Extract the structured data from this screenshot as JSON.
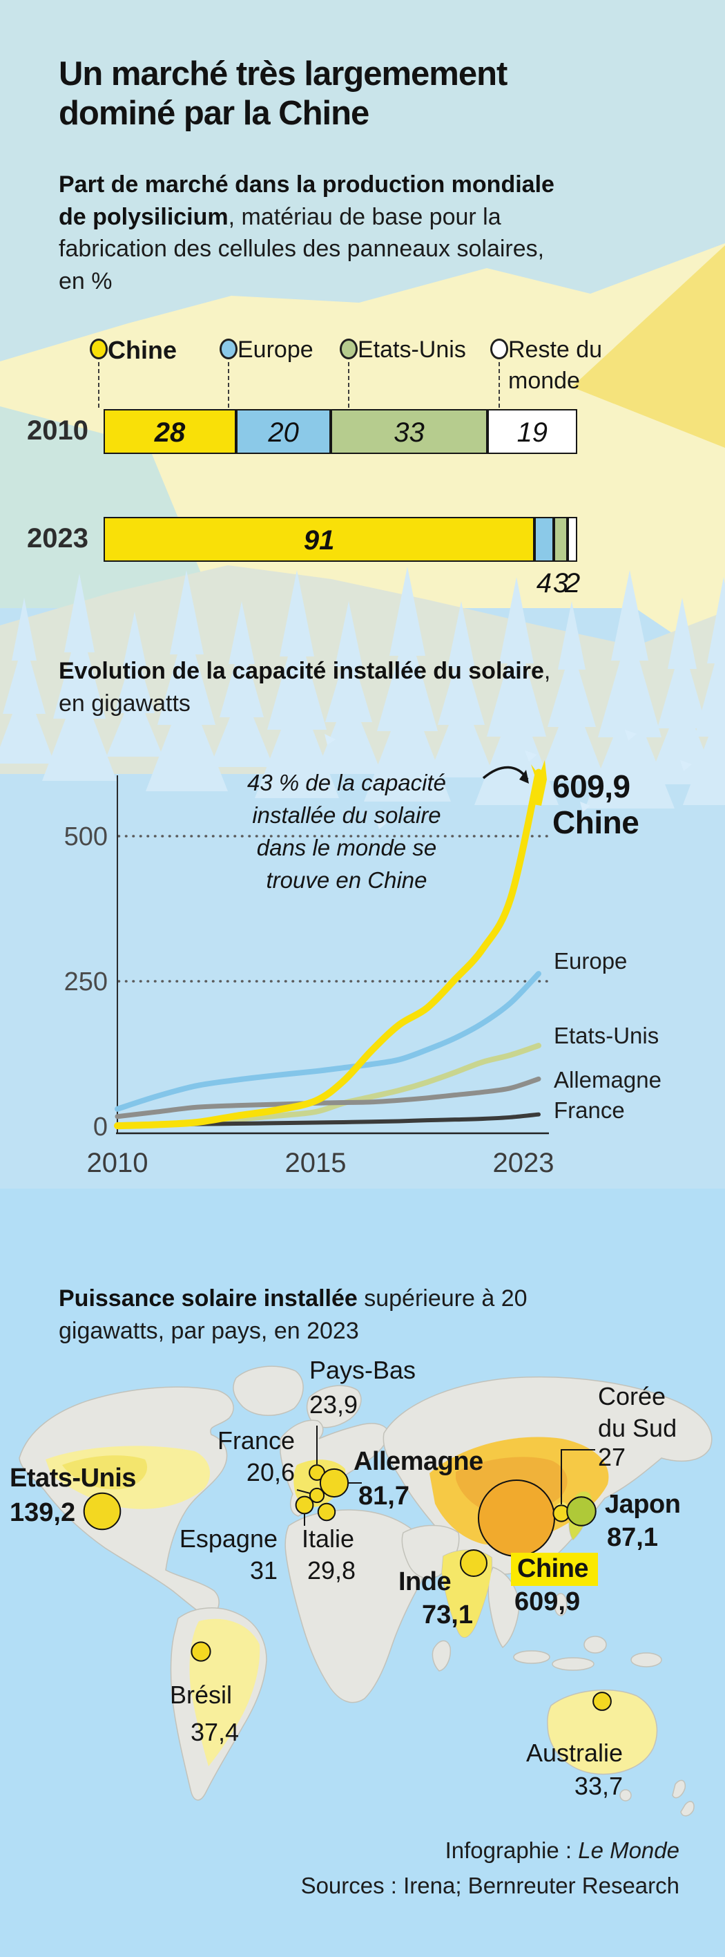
{
  "title_lines": [
    "Un marché très largemement",
    "dominé par la Chine"
  ],
  "headings": {
    "polysilicon": [
      {
        "bold": "Part de marché dans la production mondiale"
      },
      {
        "bold": "de polysilicium",
        "regular": ", matériau de base pour la"
      },
      {
        "regular": "fabrication des cellules des panneaux solaires,"
      },
      {
        "regular": "en %"
      }
    ],
    "solar": [
      {
        "bold": "Evolution de la capacité installée du solaire",
        "regular": ","
      },
      {
        "regular": "en gigawatts"
      }
    ],
    "map": [
      {
        "bold": "Puissance solaire installée",
        "regular": " supérieure à 20"
      },
      {
        "regular": "gigawatts, par pays, en 2023"
      }
    ]
  },
  "chart_data": [
    {
      "type": "bar",
      "stacked": true,
      "title": "Part de marché dans la production mondiale de polysilicium, en %",
      "categories": [
        "2010",
        "2023"
      ],
      "series": [
        {
          "name": "Chine",
          "color": "#F9E008",
          "bold": true,
          "values": [
            28,
            91
          ]
        },
        {
          "name": "Europe",
          "color": "#8BC9E8",
          "values": [
            20,
            4
          ]
        },
        {
          "name": "Etats-Unis",
          "color": "#B6CC8E",
          "values": [
            33,
            3
          ]
        },
        {
          "name": "Reste du monde",
          "color": "#FFFFFF",
          "values": [
            19,
            2
          ]
        }
      ],
      "xlim": [
        0,
        100
      ],
      "legend_position": "top"
    },
    {
      "type": "line",
      "title": "Evolution de la capacité installée du solaire, en gigawatts",
      "x": [
        2010,
        2011,
        2012,
        2013,
        2014,
        2015,
        2016,
        2017,
        2018,
        2019,
        2020,
        2021,
        2022,
        2023
      ],
      "x_ticks": [
        2010,
        2015,
        2023
      ],
      "y_ticks": [
        0,
        250,
        500
      ],
      "ylim": [
        0,
        620
      ],
      "grid": "dotted horizontal at 250 and 500",
      "series": [
        {
          "name": "Chine",
          "color": "#F9E008",
          "values": [
            1,
            3,
            7,
            18,
            28,
            44,
            78,
            130,
            175,
            204,
            253,
            306,
            393,
            609.9
          ],
          "end_label": "609,9"
        },
        {
          "name": "Europe",
          "color": "#83C5E9",
          "values": [
            30,
            52,
            70,
            80,
            88,
            95,
            101,
            107,
            115,
            132,
            152,
            178,
            213,
            263
          ]
        },
        {
          "name": "Etats-Unis",
          "color": "#C9D58F",
          "values": [
            2.5,
            4,
            7,
            12,
            18,
            25,
            40,
            51,
            62,
            76,
            93,
            111,
            123,
            139.2
          ]
        },
        {
          "name": "Allemagne",
          "color": "#8E8E8B",
          "values": [
            17,
            25,
            33,
            36,
            38,
            40,
            41,
            42,
            45,
            49,
            54,
            59,
            66,
            81.7
          ]
        },
        {
          "name": "France",
          "color": "#3B3B3A",
          "values": [
            1,
            2.8,
            4,
            4.7,
            5.7,
            6.6,
            7.2,
            8,
            9,
            10.6,
            11.7,
            13.1,
            15.7,
            20.6
          ]
        }
      ],
      "annotation_lines": [
        "43 % de la capacité",
        "installée du solaire",
        "dans le monde se",
        "trouve en Chine"
      ],
      "callout": {
        "value": "609,9",
        "name": "Chine"
      }
    },
    {
      "type": "map-bubbles",
      "title": "Puissance solaire installée supérieure à 20 gigawatts, par pays, en 2023",
      "unit": "gigawatts",
      "countries": [
        {
          "name": "Etats-Unis",
          "value": 139.2,
          "display": "139,2",
          "bold": true
        },
        {
          "name": "Brésil",
          "value": 37.4,
          "display": "37,4"
        },
        {
          "name": "Pays-Bas",
          "value": 23.9,
          "display": "23,9"
        },
        {
          "name": "France",
          "value": 20.6,
          "display": "20,6"
        },
        {
          "name": "Espagne",
          "value": 31,
          "display": "31"
        },
        {
          "name": "Allemagne",
          "value": 81.7,
          "display": "81,7",
          "bold": true
        },
        {
          "name": "Italie",
          "value": 29.8,
          "display": "29,8"
        },
        {
          "name": "Inde",
          "value": 73.1,
          "display": "73,1",
          "bold": true
        },
        {
          "name": "Chine",
          "value": 609.9,
          "display": "609,9",
          "bold": true,
          "highlight": true,
          "bubble_color": "#F1AA2D"
        },
        {
          "name": "Corée du Sud",
          "value": 27,
          "display": "27"
        },
        {
          "name": "Japon",
          "value": 87.1,
          "display": "87,1",
          "bold": true,
          "bubble_color": "#AFC938"
        },
        {
          "name": "Australie",
          "value": 33.7,
          "display": "33,7"
        }
      ],
      "default_bubble_color": "#F3D821"
    }
  ],
  "colors": {
    "sky_top": "#C9E4EA",
    "pale_yellow": "#F8F3C5",
    "bright_yellow": "#F5E37C",
    "teal_wedge": "#CCE6DF",
    "mid_blue": "#BFE1F4",
    "ocean": "#B3DEF6",
    "land": "#E6E6E1",
    "chine_yellow": "#F9E008",
    "highlight": "#FBE900"
  },
  "footer": {
    "credit_prefix": "Infographie : ",
    "credit_brand": "Le Monde",
    "sources": "Sources : Irena; Bernreuter Research"
  }
}
